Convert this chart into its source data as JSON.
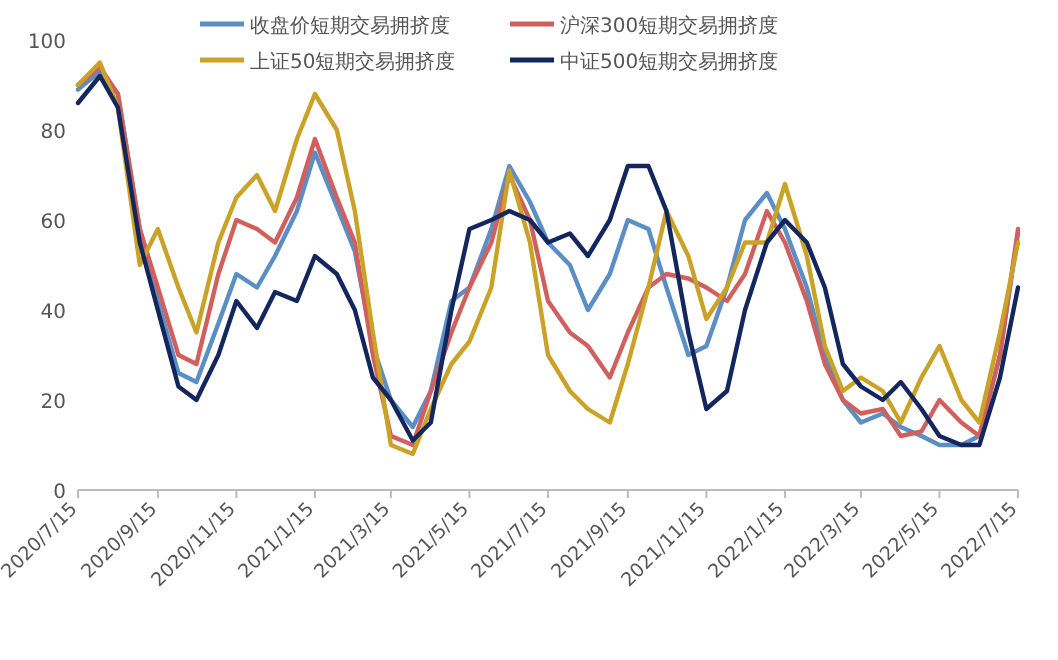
{
  "chart_data": {
    "type": "line",
    "ylim": [
      0,
      100
    ],
    "yticks": [
      0,
      20,
      40,
      60,
      80,
      100
    ],
    "xlim": [
      "2020-07-15",
      "2022-07-15"
    ],
    "xticks": [
      {
        "value": "2020-07-15",
        "label": "2020/7/15"
      },
      {
        "value": "2020-09-15",
        "label": "2020/9/15"
      },
      {
        "value": "2020-11-15",
        "label": "2020/11/15"
      },
      {
        "value": "2021-01-15",
        "label": "2021/1/15"
      },
      {
        "value": "2021-03-15",
        "label": "2021/3/15"
      },
      {
        "value": "2021-05-15",
        "label": "2021/5/15"
      },
      {
        "value": "2021-07-15",
        "label": "2021/7/15"
      },
      {
        "value": "2021-09-15",
        "label": "2021/9/15"
      },
      {
        "value": "2021-11-15",
        "label": "2021/11/15"
      },
      {
        "value": "2022-01-15",
        "label": "2022/1/15"
      },
      {
        "value": "2022-03-15",
        "label": "2022/3/15"
      },
      {
        "value": "2022-05-15",
        "label": "2022/5/15"
      },
      {
        "value": "2022-07-15",
        "label": "2022/7/15"
      }
    ],
    "x": [
      "2020-07-15",
      "2020-08-01",
      "2020-08-15",
      "2020-09-01",
      "2020-09-15",
      "2020-10-01",
      "2020-10-15",
      "2020-11-01",
      "2020-11-15",
      "2020-12-01",
      "2020-12-15",
      "2021-01-01",
      "2021-01-15",
      "2021-02-01",
      "2021-02-15",
      "2021-03-01",
      "2021-03-15",
      "2021-04-01",
      "2021-04-15",
      "2021-05-01",
      "2021-05-15",
      "2021-06-01",
      "2021-06-15",
      "2021-07-01",
      "2021-07-15",
      "2021-08-01",
      "2021-08-15",
      "2021-09-01",
      "2021-09-15",
      "2021-10-01",
      "2021-10-15",
      "2021-11-01",
      "2021-11-15",
      "2021-12-01",
      "2021-12-15",
      "2022-01-01",
      "2022-01-15",
      "2022-02-01",
      "2022-02-15",
      "2022-03-01",
      "2022-03-15",
      "2022-04-01",
      "2022-04-15",
      "2022-05-01",
      "2022-05-15",
      "2022-06-01",
      "2022-06-15",
      "2022-07-01",
      "2022-07-15"
    ],
    "legend": "top",
    "marker": "none",
    "line_style": "solid",
    "series": [
      {
        "name": "收盘价短期交易拥挤度",
        "color": "#5b8ec4",
        "values": [
          89,
          93,
          88,
          58,
          42,
          26,
          24,
          37,
          48,
          45,
          52,
          62,
          75,
          63,
          53,
          32,
          20,
          14,
          22,
          42,
          45,
          58,
          72,
          64,
          55,
          50,
          40,
          48,
          60,
          58,
          45,
          30,
          32,
          45,
          60,
          66,
          58,
          45,
          30,
          20,
          15,
          17,
          14,
          12,
          10,
          10,
          12,
          30,
          57
        ]
      },
      {
        "name": "沪深300短期交易拥挤度",
        "color": "#d0605e",
        "values": [
          90,
          94,
          88,
          58,
          45,
          30,
          28,
          48,
          60,
          58,
          55,
          65,
          78,
          65,
          55,
          30,
          12,
          10,
          22,
          35,
          45,
          55,
          70,
          60,
          42,
          35,
          32,
          25,
          35,
          45,
          48,
          47,
          45,
          42,
          48,
          62,
          55,
          42,
          28,
          20,
          17,
          18,
          12,
          13,
          20,
          15,
          12,
          30,
          58
        ]
      },
      {
        "name": "上证50短期交易拥挤度",
        "color": "#c9a227",
        "values": [
          90,
          95,
          85,
          50,
          58,
          45,
          35,
          55,
          65,
          70,
          62,
          78,
          88,
          80,
          62,
          35,
          10,
          8,
          18,
          28,
          33,
          45,
          71,
          55,
          30,
          22,
          18,
          15,
          28,
          45,
          62,
          52,
          38,
          45,
          55,
          55,
          68,
          52,
          32,
          22,
          25,
          22,
          15,
          25,
          32,
          20,
          15,
          35,
          55
        ]
      },
      {
        "name": "中证500短期交易拥挤度",
        "color": "#14265e",
        "values": [
          86,
          92,
          85,
          55,
          40,
          23,
          20,
          30,
          42,
          36,
          44,
          42,
          52,
          48,
          40,
          25,
          20,
          11,
          15,
          40,
          58,
          60,
          62,
          60,
          55,
          57,
          52,
          60,
          72,
          72,
          62,
          35,
          18,
          22,
          40,
          55,
          60,
          55,
          45,
          28,
          23,
          20,
          24,
          18,
          12,
          10,
          10,
          25,
          45
        ]
      }
    ]
  }
}
